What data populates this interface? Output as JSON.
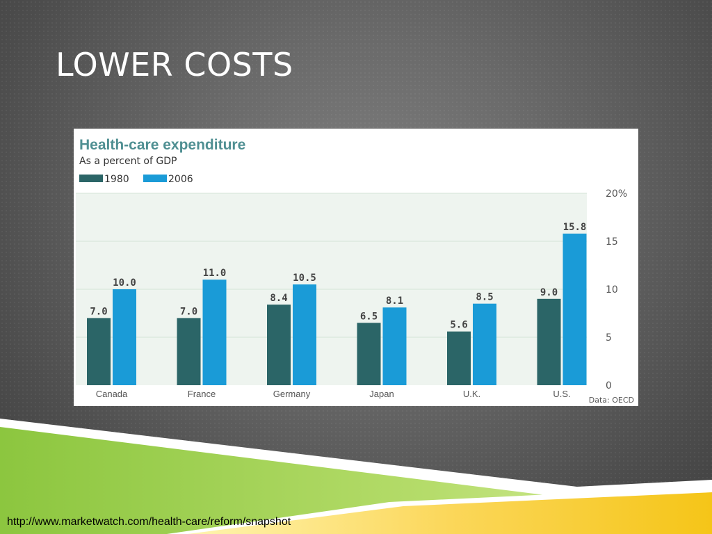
{
  "slide": {
    "title": "LOWER COSTS",
    "source_url": "http://www.marketwatch.com/health-care/reform/snapshot"
  },
  "chart_data": {
    "type": "bar",
    "title": "Health-care expenditure",
    "subtitle": "As a percent of GDP",
    "categories": [
      "Canada",
      "France",
      "Germany",
      "Japan",
      "U.K.",
      "U.S."
    ],
    "series": [
      {
        "name": "1980",
        "color": "#2b6567",
        "values": [
          7.0,
          7.0,
          8.4,
          6.5,
          5.6,
          9.0
        ]
      },
      {
        "name": "2006",
        "color": "#1a9bd7",
        "values": [
          10.0,
          11.0,
          10.5,
          8.1,
          8.5,
          15.8
        ]
      }
    ],
    "ylim": [
      0,
      20
    ],
    "yticks": [
      0,
      5,
      10,
      15,
      20
    ],
    "ytick_labels": [
      "0",
      "5",
      "10",
      "15",
      "20%"
    ],
    "axis_side": "right",
    "grid": true,
    "source": "Data: OECD",
    "colors": {
      "title": "#4f8f92",
      "plot_bg": "#eef4ef",
      "gridline": "#ffffff"
    }
  }
}
